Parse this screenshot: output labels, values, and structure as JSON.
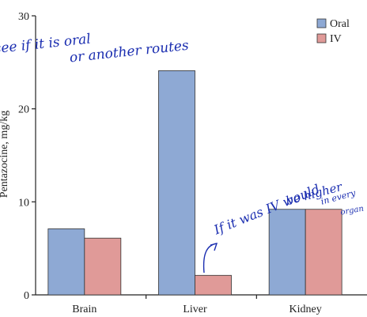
{
  "chart_data": {
    "type": "bar",
    "categories": [
      "Brain",
      "Liver",
      "Kidney"
    ],
    "series": [
      {
        "name": "Oral",
        "values": [
          7.1,
          24.1,
          9.2
        ],
        "color": "#8ea9d4"
      },
      {
        "name": "IV",
        "values": [
          6.1,
          2.1,
          9.2
        ],
        "color": "#e09a98"
      }
    ],
    "ylabel": "Pentazocine, mg/kg",
    "ylim": [
      0,
      30
    ],
    "yticks": [
      0,
      10,
      20,
      30
    ],
    "legend_position": "top-right",
    "grid": false
  },
  "annotations": {
    "note1_line1": "see if it is oral",
    "note1_line2": "or another routes",
    "note2_line1": "If it was IV would",
    "note2_line2": "be higher",
    "note2_line3": "in every",
    "note2_line4": "organ"
  },
  "colors": {
    "axis": "#222222",
    "ink": "#1a2db0",
    "bar_stroke": "#333333"
  }
}
